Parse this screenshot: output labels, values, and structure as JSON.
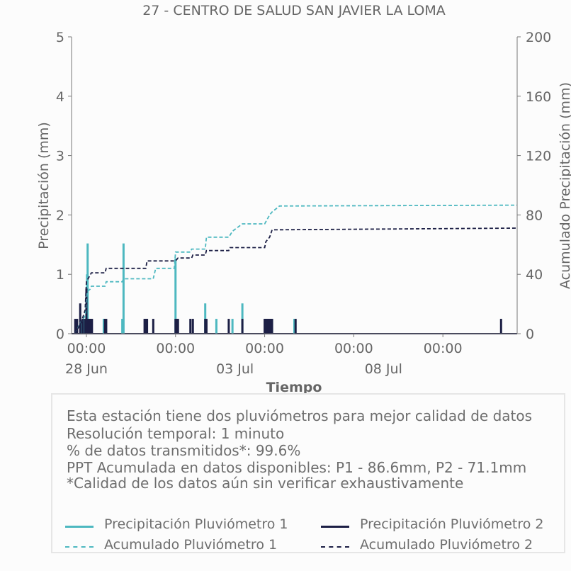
{
  "colors": {
    "p1": "#4db8c0",
    "p2": "#1c1f45",
    "axis": "#777777",
    "text": "#666666"
  },
  "chart_data": {
    "type": "line",
    "title": "27 - CENTRO DE SALUD SAN JAVIER LA LOMA",
    "xlabel": "Tiempo",
    "ylabel_left": "Precipitación (mm)",
    "ylabel_right": "Acumulado Precipitación (mm)",
    "ylim_left": [
      0,
      5
    ],
    "ylim_right": [
      0,
      200
    ],
    "yticks_left": [
      "0",
      "1",
      "2",
      "3",
      "4",
      "5"
    ],
    "yticks_right": [
      "0",
      "40",
      "80",
      "120",
      "160",
      "200"
    ],
    "xlim": [
      "2024-06-27T12:00",
      "2024-07-12T12:00"
    ],
    "xtick_positions": [
      "2024-06-28T00:00",
      "2024-07-01T00:00",
      "2024-07-04T00:00",
      "2024-07-07T00:00",
      "2024-07-10T00:00"
    ],
    "xtick_labels": [
      "00:00",
      "00:00",
      "00:00",
      "00:00",
      "00:00"
    ],
    "xtick_date_positions": [
      "2024-06-28T00:00",
      "2024-07-03T00:00",
      "2024-07-08T00:00"
    ],
    "xtick_date_labels": [
      "28 Jun",
      "03 Jul",
      "08 Jul"
    ],
    "grid": false,
    "series": [
      {
        "name": "Precipitación Pluviómetro 1",
        "style": "bars",
        "axis": "left",
        "points": [
          [
            "2024-06-27T16:00",
            0.1
          ],
          [
            "2024-06-27T20:00",
            0.2
          ],
          [
            "2024-06-27T22:00",
            0.25
          ],
          [
            "2024-06-28T00:30",
            1.0
          ],
          [
            "2024-06-28T01:00",
            1.52
          ],
          [
            "2024-06-28T02:00",
            0.25
          ],
          [
            "2024-06-28T14:00",
            0.25
          ],
          [
            "2024-06-29T05:00",
            0.25
          ],
          [
            "2024-06-29T06:00",
            1.52
          ],
          [
            "2024-07-01T00:00",
            1.27
          ],
          [
            "2024-07-01T01:00",
            0.25
          ],
          [
            "2024-07-02T00:00",
            0.51
          ],
          [
            "2024-07-02T09:00",
            0.25
          ],
          [
            "2024-07-02T22:00",
            0.25
          ],
          [
            "2024-07-03T06:00",
            0.51
          ],
          [
            "2024-07-04T01:00",
            0.25
          ],
          [
            "2024-07-04T06:00",
            0.25
          ],
          [
            "2024-07-05T00:00",
            0.25
          ]
        ]
      },
      {
        "name": "Precipitación Pluviómetro 2",
        "style": "bars",
        "axis": "left",
        "points": [
          [
            "2024-06-27T15:00",
            0.25
          ],
          [
            "2024-06-27T16:30",
            0.25
          ],
          [
            "2024-06-27T19:00",
            0.51
          ],
          [
            "2024-06-27T21:00",
            0.25
          ],
          [
            "2024-06-27T23:00",
            0.25
          ],
          [
            "2024-06-28T00:00",
            0.76
          ],
          [
            "2024-06-28T00:40",
            0.25
          ],
          [
            "2024-06-28T01:30",
            0.25
          ],
          [
            "2024-06-28T02:30",
            0.25
          ],
          [
            "2024-06-28T03:00",
            0.25
          ],
          [
            "2024-06-28T03:30",
            0.25
          ],
          [
            "2024-06-28T04:30",
            0.25
          ],
          [
            "2024-06-28T15:00",
            0.25
          ],
          [
            "2024-06-28T16:00",
            0.25
          ],
          [
            "2024-06-29T23:00",
            0.25
          ],
          [
            "2024-06-30T00:00",
            0.25
          ],
          [
            "2024-06-30T01:00",
            0.25
          ],
          [
            "2024-06-30T06:00",
            0.25
          ],
          [
            "2024-07-01T00:00",
            0.25
          ],
          [
            "2024-07-01T01:00",
            0.25
          ],
          [
            "2024-07-01T02:00",
            0.25
          ],
          [
            "2024-07-01T12:00",
            0.25
          ],
          [
            "2024-07-01T14:00",
            0.25
          ],
          [
            "2024-07-02T00:00",
            0.25
          ],
          [
            "2024-07-02T01:00",
            0.25
          ],
          [
            "2024-07-02T19:00",
            0.25
          ],
          [
            "2024-07-03T06:00",
            0.25
          ],
          [
            "2024-07-04T00:00",
            0.25
          ],
          [
            "2024-07-04T01:00",
            0.25
          ],
          [
            "2024-07-04T02:00",
            0.25
          ],
          [
            "2024-07-04T03:00",
            0.25
          ],
          [
            "2024-07-04T04:00",
            0.25
          ],
          [
            "2024-07-04T05:00",
            0.25
          ],
          [
            "2024-07-04T06:00",
            0.25
          ],
          [
            "2024-07-05T01:00",
            0.25
          ],
          [
            "2024-07-11T23:00",
            0.25
          ]
        ]
      },
      {
        "name": "Acumulado Pluviómetro 1",
        "style": "dashed",
        "axis": "right",
        "points": [
          [
            "2024-06-27T15:00",
            0
          ],
          [
            "2024-06-27T19:00",
            7
          ],
          [
            "2024-06-27T23:00",
            12
          ],
          [
            "2024-06-28T00:30",
            28
          ],
          [
            "2024-06-28T03:00",
            30
          ],
          [
            "2024-06-28T04:00",
            32
          ],
          [
            "2024-06-28T15:00",
            32
          ],
          [
            "2024-06-28T16:00",
            35
          ],
          [
            "2024-06-29T05:00",
            35
          ],
          [
            "2024-06-29T06:00",
            37
          ],
          [
            "2024-06-30T06:00",
            37
          ],
          [
            "2024-06-30T08:00",
            44
          ],
          [
            "2024-06-30T23:00",
            44
          ],
          [
            "2024-07-01T00:00",
            55
          ],
          [
            "2024-07-01T12:00",
            55
          ],
          [
            "2024-07-01T13:00",
            57
          ],
          [
            "2024-07-02T00:00",
            57
          ],
          [
            "2024-07-02T01:00",
            65
          ],
          [
            "2024-07-02T19:00",
            65
          ],
          [
            "2024-07-02T22:00",
            69
          ],
          [
            "2024-07-03T06:00",
            74
          ],
          [
            "2024-07-04T00:00",
            74
          ],
          [
            "2024-07-04T04:00",
            80
          ],
          [
            "2024-07-04T06:00",
            82
          ],
          [
            "2024-07-04T12:00",
            86
          ],
          [
            "2024-07-12T12:00",
            86.6
          ]
        ]
      },
      {
        "name": "Acumulado Pluviómetro 2",
        "style": "dashed",
        "axis": "right",
        "points": [
          [
            "2024-06-27T15:00",
            0
          ],
          [
            "2024-06-27T20:00",
            8
          ],
          [
            "2024-06-27T23:00",
            16
          ],
          [
            "2024-06-28T00:00",
            35
          ],
          [
            "2024-06-28T02:00",
            38
          ],
          [
            "2024-06-28T04:00",
            41
          ],
          [
            "2024-06-28T15:00",
            41
          ],
          [
            "2024-06-28T16:00",
            44
          ],
          [
            "2024-06-30T00:00",
            44
          ],
          [
            "2024-06-30T01:00",
            49
          ],
          [
            "2024-07-01T00:00",
            49
          ],
          [
            "2024-07-01T02:00",
            51
          ],
          [
            "2024-07-01T13:00",
            51
          ],
          [
            "2024-07-01T14:00",
            53
          ],
          [
            "2024-07-02T00:00",
            53
          ],
          [
            "2024-07-02T01:00",
            56
          ],
          [
            "2024-07-02T19:00",
            56
          ],
          [
            "2024-07-02T20:00",
            58
          ],
          [
            "2024-07-04T00:00",
            58
          ],
          [
            "2024-07-04T01:00",
            62
          ],
          [
            "2024-07-04T04:00",
            65
          ],
          [
            "2024-07-04T06:00",
            70
          ],
          [
            "2024-07-12T12:00",
            71.1
          ]
        ]
      }
    ]
  },
  "info": {
    "lines": [
      "Esta estación tiene dos pluviómetros para mejor calidad de datos",
      "Resolución temporal: 1 minuto",
      "% de datos transmitidos*: 99.6%",
      "PPT Acumulada en datos disponibles: P1 - 86.6mm, P2 - 71.1mm",
      "*Calidad de los datos aún sin verificar exhaustivamente"
    ]
  },
  "legend": {
    "p1_precip": "Precipitación Pluviómetro 1",
    "p2_precip": "Precipitación Pluviómetro 2",
    "p1_acum": "Acumulado Pluviómetro 1",
    "p2_acum": "Acumulado Pluviómetro 2"
  }
}
